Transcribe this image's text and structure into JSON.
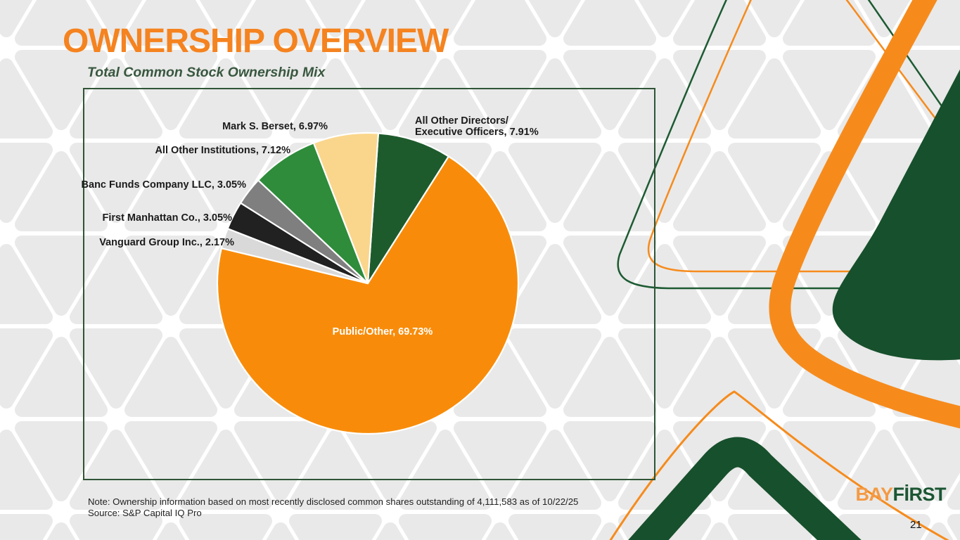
{
  "header": {
    "title": "OWNERSHIP OVERVIEW",
    "subtitle": "Total Common Stock Ownership Mix"
  },
  "chart_data": {
    "type": "pie",
    "title": "Total Common Stock Ownership Mix",
    "units": "percent of common stock",
    "total": 100,
    "start_angle_deg": 4,
    "legend_position": "none",
    "slices": [
      {
        "id": "directors",
        "label": "All Other Directors/Executive Officers",
        "value": 7.91,
        "color": "#1E5B2C",
        "display": "All Other Directors/\nExecutive Officers, 7.91%"
      },
      {
        "id": "public",
        "label": "Public/Other",
        "value": 69.73,
        "color": "#F88C0A",
        "display": "Public/Other, 69.73%"
      },
      {
        "id": "vanguard",
        "label": "Vanguard Group Inc.",
        "value": 2.17,
        "color": "#D9D9D9",
        "display": "Vanguard Group Inc., 2.17%"
      },
      {
        "id": "manhattan",
        "label": "First Manhattan Co.",
        "value": 3.05,
        "color": "#212121",
        "display": "First Manhattan Co., 3.05%"
      },
      {
        "id": "banc",
        "label": "Banc Funds Company LLC",
        "value": 3.05,
        "color": "#7F7F7F",
        "display": "Banc Funds Company LLC, 3.05%"
      },
      {
        "id": "institutions",
        "label": "All Other Institutions",
        "value": 7.12,
        "color": "#2E8C3A",
        "display": "All Other Institutions, 7.12%"
      },
      {
        "id": "berset",
        "label": "Mark S. Berset",
        "value": 6.97,
        "color": "#FAD68C",
        "display": "Mark S. Berset, 6.97%"
      }
    ]
  },
  "footnotes": {
    "note": "Note: Ownership information based on most recently disclosed common shares outstanding of 4,111,583 as of 10/22/25",
    "source": "Source: S&P Capital IQ Pro"
  },
  "logo": {
    "part1": "BAY",
    "part2": "FİRST"
  },
  "page_number": "21",
  "colors": {
    "title_orange": "#F5831F",
    "accent_orange": "#F68B1C",
    "brand_dark_green": "#17502C",
    "subtitle_green": "#38573F",
    "frame_green": "#2F5436",
    "pattern_gray": "#E9E9E9"
  }
}
